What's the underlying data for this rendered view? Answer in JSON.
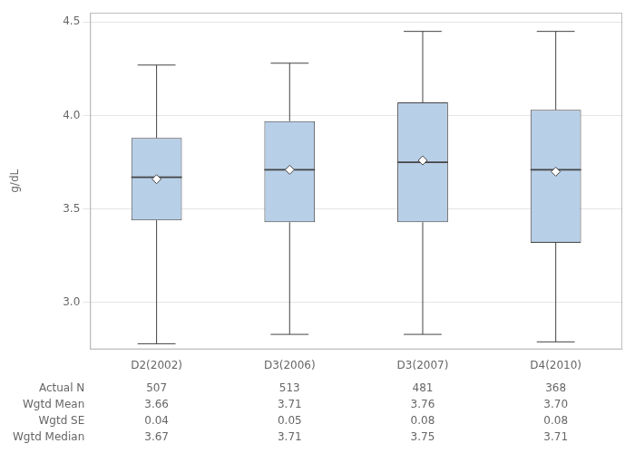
{
  "chart_data": {
    "type": "box",
    "ylabel": "g/dL",
    "categories": [
      "D2(2002)",
      "D3(2006)",
      "D3(2007)",
      "D4(2010)"
    ],
    "boxes": [
      {
        "q1": 3.44,
        "q3": 3.88,
        "median": 3.67,
        "mean": 3.66,
        "whisker_low": 2.78,
        "whisker_high": 4.27
      },
      {
        "q1": 3.43,
        "q3": 3.97,
        "median": 3.71,
        "mean": 3.71,
        "whisker_low": 2.83,
        "whisker_high": 4.28
      },
      {
        "q1": 3.43,
        "q3": 4.07,
        "median": 3.75,
        "mean": 3.76,
        "whisker_low": 2.83,
        "whisker_high": 4.45
      },
      {
        "q1": 3.32,
        "q3": 4.03,
        "median": 3.71,
        "mean": 3.7,
        "whisker_low": 2.79,
        "whisker_high": 4.45
      }
    ],
    "color": "#b8cfe8",
    "ylim": [
      2.75,
      4.55
    ],
    "yticks": [
      {
        "value": 3.0,
        "label": "3.0"
      },
      {
        "value": 3.5,
        "label": "3.5"
      },
      {
        "value": 4.0,
        "label": "4.0"
      },
      {
        "value": 4.5,
        "label": "4.5"
      }
    ],
    "grid": true,
    "table_labels": [
      "Actual N",
      "Wgtd Mean",
      "Wgtd SE",
      "Wgtd Median"
    ],
    "table_data": [
      [
        "507",
        "513",
        "481",
        "368"
      ],
      [
        "3.66",
        "3.71",
        "3.76",
        "3.70"
      ],
      [
        "0.04",
        "0.05",
        "0.08",
        "0.08"
      ],
      [
        "3.67",
        "3.71",
        "3.75",
        "3.71"
      ]
    ]
  }
}
